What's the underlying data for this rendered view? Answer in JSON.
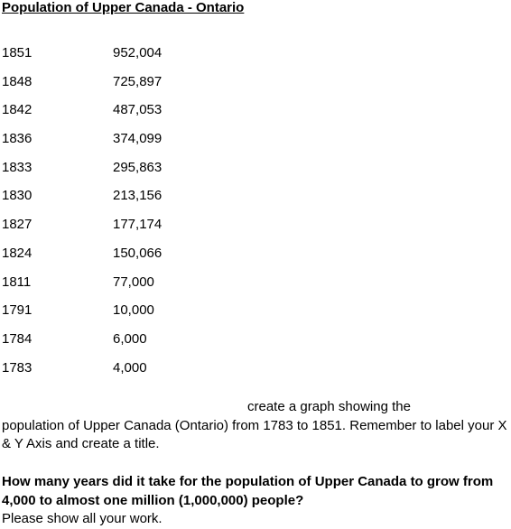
{
  "document": {
    "title": "Population of Upper Canada - Ontario",
    "population_table": [
      {
        "year": "1851",
        "population": "952,004"
      },
      {
        "year": "1848",
        "population": "725,897"
      },
      {
        "year": "1842",
        "population": "487,053"
      },
      {
        "year": "1836",
        "population": "374,099"
      },
      {
        "year": "1833",
        "population": "295,863"
      },
      {
        "year": "1830",
        "population": "213,156"
      },
      {
        "year": "1827",
        "population": "177,174"
      },
      {
        "year": "1824",
        "population": "150,066"
      },
      {
        "year": "1811",
        "population": "77,000"
      },
      {
        "year": "1791",
        "population": "10,000"
      },
      {
        "year": "1784",
        "population": "6,000"
      },
      {
        "year": "1783",
        "population": "4,000"
      }
    ],
    "instructions_line1": "create a graph showing the",
    "instructions_rest": "population of Upper Canada (Ontario) from 1783 to 1851.  Remember to label your X & Y Axis and create a title.",
    "question_bold": "How many years did it take for the population of Upper Canada to grow from 4,000 to almost one million (1,000,000) people?",
    "question_plain": "Please show all your work."
  }
}
